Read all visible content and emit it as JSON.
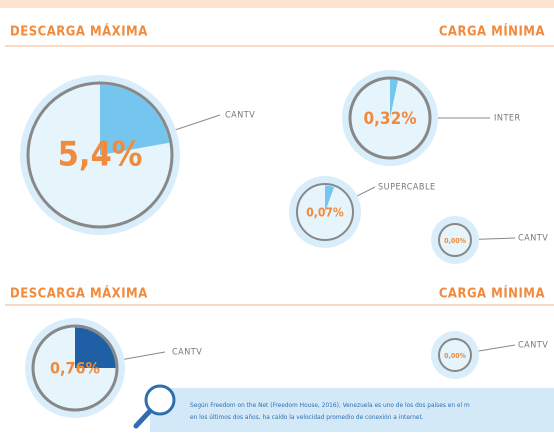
{
  "sections": [
    {
      "left_heading": "DESCARGA MÁXIMA",
      "right_heading": "CARGA MÍNIMA",
      "items": [
        {
          "value": "5,4%",
          "label": "CANTV"
        },
        {
          "value": "0,32%",
          "label": "INTER"
        },
        {
          "value": "0,07%",
          "label": "SUPERCABLE"
        },
        {
          "value": "0,00%",
          "label": "CANTV"
        }
      ]
    },
    {
      "left_heading": "DESCARGA MÁXIMA",
      "right_heading": "CARGA MÍNIMA",
      "items": [
        {
          "value": "0,76%",
          "label": "CANTV"
        },
        {
          "value": "0,00%",
          "label": "CANTV"
        }
      ]
    }
  ],
  "note": {
    "line1": "Según Freedom on the Net (Freedom House, 2016), Venezuela es uno de los dos países en el m",
    "line2": "en los últimos dos años, ha caído la velocidad promedio de conexión a internet."
  }
}
